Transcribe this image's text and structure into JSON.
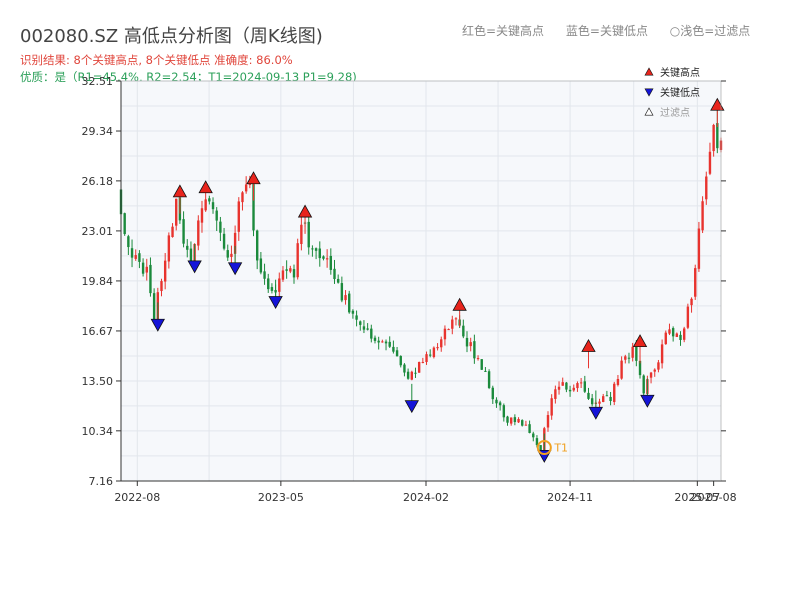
{
  "header": {
    "title": "002080.SZ 高低点分析图（周K线图)",
    "result_line": "识别结果: 8个关键高点, 8个关键低点   准确度: 86.0%",
    "quality_line": "优质：是（R1=45.4%, R2=2.54；T1=2024-09-13 P1=9.28)"
  },
  "top_legend": {
    "high": "红色=关键高点",
    "low": "蓝色=关键低点",
    "filtered": "○浅色=过滤点"
  },
  "colors": {
    "up": "#e8332e",
    "down": "#1b8a3c",
    "high_marker": "#e8241c",
    "low_marker": "#1414d8",
    "t1_circle": "#f0a020",
    "plot_bg": "#f6f8fb",
    "grid": "#e2e6ec"
  },
  "chart_data": {
    "type": "candlestick",
    "period": "weekly",
    "x_axis": {
      "type": "date",
      "range": [
        "2022-07-01",
        "2025-08-15"
      ],
      "ticks": [
        "2022-08",
        "2023-05",
        "2024-02",
        "2024-11",
        "2025-07",
        "2025-08"
      ]
    },
    "y_axis": {
      "range": [
        7.16,
        32.51
      ],
      "ticks": [
        7.16,
        10.34,
        13.5,
        16.67,
        19.84,
        23.01,
        26.18,
        29.34,
        32.51
      ]
    },
    "grid": true,
    "legend": {
      "placement": "top-right",
      "entries": [
        "关键高点",
        "关键低点",
        "过滤点"
      ]
    },
    "price_path": [
      [
        "2022-07-01",
        25.6
      ],
      [
        "2022-07-15",
        23.0
      ],
      [
        "2022-08-05",
        21.2
      ],
      [
        "2022-08-26",
        20.5
      ],
      [
        "2022-09-09",
        17.7
      ],
      [
        "2022-09-30",
        21.0
      ],
      [
        "2022-10-21",
        25.0
      ],
      [
        "2022-11-04",
        22.5
      ],
      [
        "2022-11-18",
        21.3
      ],
      [
        "2022-12-16",
        25.2
      ],
      [
        "2023-01-06",
        23.5
      ],
      [
        "2023-02-03",
        21.2
      ],
      [
        "2023-02-17",
        25.2
      ],
      [
        "2023-03-10",
        25.8
      ],
      [
        "2023-03-24",
        21.0
      ],
      [
        "2023-04-21",
        19.0
      ],
      [
        "2023-05-12",
        20.5
      ],
      [
        "2023-06-02",
        20.2
      ],
      [
        "2023-06-16",
        23.8
      ],
      [
        "2023-07-07",
        21.5
      ],
      [
        "2023-08-04",
        20.8
      ],
      [
        "2023-09-01",
        19.0
      ],
      [
        "2023-09-29",
        17.5
      ],
      [
        "2023-11-03",
        16.0
      ],
      [
        "2023-12-08",
        15.5
      ],
      [
        "2024-01-05",
        13.5
      ],
      [
        "2024-01-26",
        14.5
      ],
      [
        "2024-02-23",
        15.3
      ],
      [
        "2024-03-15",
        16.5
      ],
      [
        "2024-04-05",
        17.8
      ],
      [
        "2024-04-26",
        16.0
      ],
      [
        "2024-05-24",
        14.5
      ],
      [
        "2024-06-14",
        12.5
      ],
      [
        "2024-07-12",
        11.0
      ],
      [
        "2024-08-09",
        10.8
      ],
      [
        "2024-08-30",
        10.0
      ],
      [
        "2024-09-13",
        9.3
      ],
      [
        "2024-10-04",
        12.3
      ],
      [
        "2024-10-18",
        13.3
      ],
      [
        "2024-11-08",
        12.8
      ],
      [
        "2024-11-29",
        13.5
      ],
      [
        "2024-12-20",
        12.2
      ],
      [
        "2025-01-24",
        12.5
      ],
      [
        "2025-02-14",
        14.5
      ],
      [
        "2025-03-07",
        15.5
      ],
      [
        "2025-03-28",
        13.0
      ],
      [
        "2025-04-18",
        14.2
      ],
      [
        "2025-05-16",
        17.0
      ],
      [
        "2025-06-06",
        16.0
      ],
      [
        "2025-06-27",
        19.0
      ],
      [
        "2025-07-18",
        25.0
      ],
      [
        "2025-08-08",
        30.3
      ],
      [
        "2025-08-15",
        28.5
      ]
    ],
    "key_highs": [
      {
        "date": "2022-10-21",
        "price": 24.99
      },
      {
        "date": "2022-12-09",
        "price": 25.25
      },
      {
        "date": "2023-03-10",
        "price": 25.82
      },
      {
        "date": "2023-06-16",
        "price": 23.71
      },
      {
        "date": "2024-04-05",
        "price": 17.8
      },
      {
        "date": "2024-12-06",
        "price": 15.19
      },
      {
        "date": "2025-03-14",
        "price": 15.5
      },
      {
        "date": "2025-08-08",
        "price": 30.48
      }
    ],
    "key_lows": [
      {
        "date": "2022-09-09",
        "price": 17.59
      },
      {
        "date": "2022-11-18",
        "price": 21.29
      },
      {
        "date": "2023-02-03",
        "price": 21.17
      },
      {
        "date": "2023-04-21",
        "price": 19.03
      },
      {
        "date": "2024-01-05",
        "price": 12.43
      },
      {
        "date": "2024-09-13",
        "price": 9.28
      },
      {
        "date": "2024-12-20",
        "price": 12.01
      },
      {
        "date": "2025-03-28",
        "price": 12.77
      }
    ],
    "t1_marker": {
      "date": "2024-09-13",
      "price": 9.28,
      "label": "T1"
    }
  }
}
